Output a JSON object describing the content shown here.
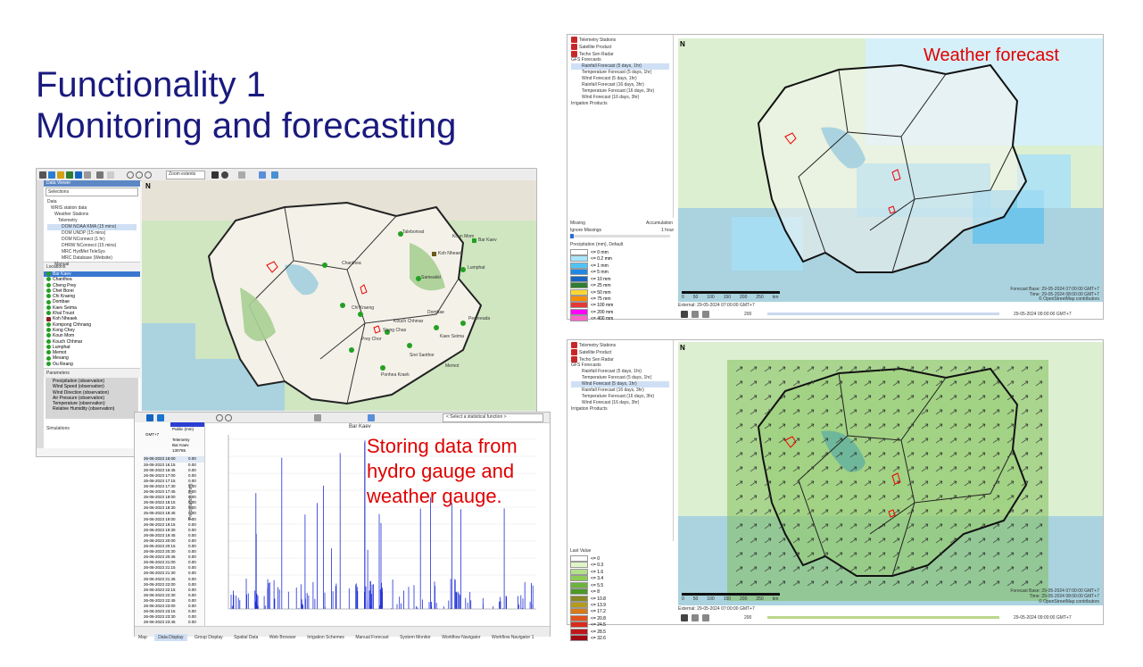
{
  "slide": {
    "title_line1": "Functionality 1",
    "title_line2": "Monitoring and forecasting",
    "note_storing": "Storing data from hydro gauge and weather gauge.",
    "note_weather": "Weather forecast",
    "accent_title": "#1a1a7e",
    "accent_note": "#e00000"
  },
  "main_app": {
    "toolbar": {
      "zoom_label": "Zoom extents"
    },
    "data_viewer_tab": "Data Viewer",
    "selections_label": "Selections",
    "data_tree": [
      "Data",
      "WRIS station data",
      "Weather Stations",
      "Telemetry",
      "DOM NOAA KMA (15 mins)",
      "DOM UNDP (15 mins)",
      "DOM NConnect (1 hr)",
      "DHRW NConnect (15 mins)",
      "MRC HydMet TeleSys",
      "MRC Database (Website)",
      "Manual"
    ],
    "locations_header": "Locations",
    "locations": [
      "Bar Kaev",
      "Chanthea",
      "Cheng Prey",
      "Chet Borei",
      "Chi Kraeng",
      "Dombae",
      "Kaev Seima",
      "Khal Tnuot",
      "Koh Nheaek",
      "Kompong Chhnang",
      "Kong Chey",
      "Koun Mom",
      "Kouch Chhmar",
      "Lumphat",
      "Memot",
      "Mesang",
      "Ou Reang"
    ],
    "parameters_header": "Parameters",
    "parameters": [
      "Precipitation (observation)",
      "Wind Speed (observation)",
      "Wind Direction (observation)",
      "Air Pressure (observation)",
      "Temperature (observation)",
      "Relative Humidity (observation)"
    ],
    "simulations_header": "Simulations",
    "map_labels": [
      "Chanthea",
      "Taleborivat",
      "Lumphat",
      "Koun Mom",
      "Bar Kaev",
      "Sameakki",
      "Koh Nheaek",
      "Pechreada",
      "Kouch Chhmar",
      "Stung Chas",
      "Kaev Seima",
      "Prey Chor",
      "Srei Santhor",
      "Memot",
      "Ponhea Kraek",
      "Chi Kraeng",
      "Dombae"
    ]
  },
  "data_display": {
    "station_name": "Bar Kaev",
    "chart_title": "Bar Kaev",
    "function_box": "< Select a statistical function >",
    "ylabel": "Precipitation (mm)",
    "info_rows": [
      "Public (mm)",
      "GMT+7",
      "Telemetry",
      "Bar Kaev",
      "130765"
    ],
    "table_rows": [
      [
        "26-06-2023 16:00",
        "0.00"
      ],
      [
        "26-06-2023 16:15",
        "0.00"
      ],
      [
        "26-06-2023 16:45",
        "0.00"
      ],
      [
        "26-06-2023 17:00",
        "0.00"
      ],
      [
        "26-06-2023 17:15",
        "0.00"
      ],
      [
        "26-06-2023 17:30",
        "0.00"
      ],
      [
        "26-06-2023 17:45",
        "0.00"
      ],
      [
        "26-06-2023 18:00",
        "0.00"
      ],
      [
        "26-06-2023 18:15",
        "0.00"
      ],
      [
        "26-06-2023 18:30",
        "0.00"
      ],
      [
        "26-06-2023 18:45",
        "0.00"
      ],
      [
        "26-06-2023 19:00",
        "0.00"
      ],
      [
        "26-06-2023 19:15",
        "0.00"
      ],
      [
        "26-06-2023 19:30",
        "0.00"
      ],
      [
        "26-06-2023 19:45",
        "0.00"
      ],
      [
        "26-06-2023 20:00",
        "0.00"
      ],
      [
        "26-06-2023 20:15",
        "0.00"
      ],
      [
        "26-06-2023 20:30",
        "0.00"
      ],
      [
        "26-06-2023 20:45",
        "0.00"
      ],
      [
        "26-06-2023 21:00",
        "0.00"
      ],
      [
        "26-06-2023 21:15",
        "0.00"
      ],
      [
        "26-06-2023 21:30",
        "0.00"
      ],
      [
        "26-06-2023 21:45",
        "0.00"
      ],
      [
        "26-06-2023 22:00",
        "0.00"
      ],
      [
        "26-06-2023 22:15",
        "0.00"
      ],
      [
        "26-06-2023 22:30",
        "0.00"
      ],
      [
        "26-06-2023 22:45",
        "0.00"
      ],
      [
        "26-06-2023 23:00",
        "0.00"
      ],
      [
        "26-06-2023 23:15",
        "0.00"
      ],
      [
        "26-06-2023 23:30",
        "0.00"
      ],
      [
        "26-06-2023 23:45",
        "0.00"
      ],
      [
        "27-06-2023 00:00",
        "0.00"
      ],
      [
        "27-06-2023 00:15",
        "0.00"
      ],
      [
        "27-06-2023 00:30",
        "0.00"
      ],
      [
        "27-06-2023 00:45",
        "0.00"
      ],
      [
        "27-06-2023 01:00",
        "0.00"
      ],
      [
        "27-06-2023 01:15",
        "0.00"
      ],
      [
        "27-06-2023 01:30",
        "0.00"
      ],
      [
        "27-06-2023 01:45",
        "0.00"
      ]
    ],
    "tabs": [
      "Map",
      "Data Display",
      "Group Display",
      "Spatial Data",
      "Web Browser",
      "Irrigation Schemes",
      "Manual Forecast",
      "System Monitor",
      "Workflow Navigator",
      "Workflow Navigator 1"
    ]
  },
  "rain_panel": {
    "tree": [
      "Telemetry Stations",
      "Satellite Product",
      "Techo Sen Radar",
      "GFS Forecasts",
      "Rainfall Forecast (5 days, 1hr)",
      "Temperature Forecast (5 days, 1hr)",
      "Wind Forecast (5 days, 1hr)",
      "Rainfall Forecast (16 days, 3hr)",
      "Temperature Forecast (16 days, 3hr)",
      "Wind Forecast (16 days, 3hr)",
      "Irrigation Products"
    ],
    "selected_index": 4,
    "missing_label": "Missing",
    "ignore_missing_label": "Ignore Missings",
    "accumulation_label": "Accumulation",
    "accumulation_value": "1 hour",
    "legend_title": "Precipitation (mm), Default",
    "legend": [
      {
        "label": "<= 0 mm",
        "color": "#ffffff"
      },
      {
        "label": "<= 0.2 mm",
        "color": "#a8e6ff"
      },
      {
        "label": "<= 1 mm",
        "color": "#4fc3f7"
      },
      {
        "label": "<= 5 mm",
        "color": "#1e88e5"
      },
      {
        "label": "<= 10 mm",
        "color": "#1565c0"
      },
      {
        "label": "<= 25 mm",
        "color": "#2e7d32"
      },
      {
        "label": "<= 50 mm",
        "color": "#fdd835"
      },
      {
        "label": "<= 75 mm",
        "color": "#fb8c00"
      },
      {
        "label": "<= 100 mm",
        "color": "#e53935"
      },
      {
        "label": "<= 200 mm",
        "color": "#ff00ff"
      },
      {
        "label": "<= 400 mm",
        "color": "#ff66cc"
      }
    ],
    "scale_labels": [
      "0",
      "50",
      "100",
      "150",
      "200",
      "250",
      "km"
    ],
    "forecast_base": "Forecast Base: 29-05-2024 07:00:00 GMT+7",
    "time_label": "Time: 29-05-2024 08:00:00 GMT+7",
    "external": "External: 29-05-2024 07:00:00 GMT+7",
    "clock": "29-05-2024 09:00:00 GMT+7",
    "speed": "200",
    "attribution": "© OpenStreetMap contributors"
  },
  "wind_panel": {
    "tree": [
      "Telemetry Stations",
      "Satellite Product",
      "Techo Sen Radar",
      "GFS Forecasts",
      "Rainfall Forecast (5 days, 1hr)",
      "Temperature Forecast (5 days, 1hr)",
      "Wind Forecast (5 days, 1hr)",
      "Rainfall Forecast (16 days, 3hr)",
      "Temperature Forecast (16 days, 3hr)",
      "Wind Forecast (16 days, 3hr)",
      "Irrigation Products"
    ],
    "selected_index": 6,
    "legend_title": "Last Value",
    "legend": [
      {
        "label": "<= 0",
        "color": "#ffffff"
      },
      {
        "label": "<= 0.3",
        "color": "#dff5c9"
      },
      {
        "label": "<= 1.6",
        "color": "#b5e08a"
      },
      {
        "label": "<= 3.4",
        "color": "#8fcc55"
      },
      {
        "label": "<= 5.5",
        "color": "#6bb33a"
      },
      {
        "label": "<= 8",
        "color": "#4c9a27"
      },
      {
        "label": "<= 10.8",
        "color": "#8a8a22"
      },
      {
        "label": "<= 13.9",
        "color": "#b59a1f"
      },
      {
        "label": "<= 17.2",
        "color": "#d67a1a"
      },
      {
        "label": "<= 20.8",
        "color": "#e0521a"
      },
      {
        "label": "<= 24.5",
        "color": "#d92b1c"
      },
      {
        "label": "<= 28.5",
        "color": "#c0161a"
      },
      {
        "label": "<= 32.6",
        "color": "#a00a14"
      }
    ],
    "scale_labels": [
      "0",
      "50",
      "100",
      "150",
      "200",
      "250",
      "km"
    ],
    "forecast_base": "Forecast Base: 29-05-2024 07:00:00 GMT+7",
    "time_label": "Time: 29-05-2024 08:00:00 GMT+7",
    "external": "External: 29-05-2024 07:00:00 GMT+7",
    "clock": "29-05-2024 09:00:00 GMT+7",
    "speed": "200",
    "attribution": "© OpenStreetMap contributors"
  }
}
